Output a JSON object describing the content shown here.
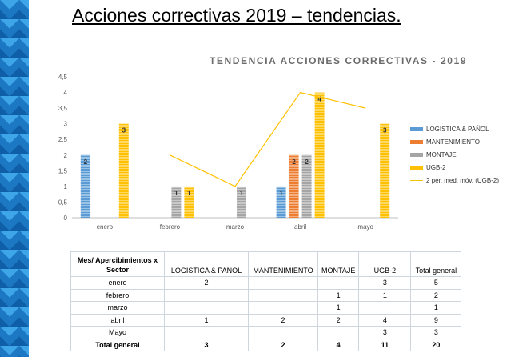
{
  "slide": {
    "title": "Acciones correctivas 2019 – tendencias."
  },
  "chart_data": {
    "type": "bar",
    "title": "TENDENCIA ACCIONES CORRECTIVAS - 2019",
    "categories": [
      "enero",
      "febrero",
      "marzo",
      "abril",
      "mayo"
    ],
    "ylim": [
      0,
      4.5
    ],
    "yticks": [
      "0",
      "0,5",
      "1",
      "1,5",
      "2",
      "2,5",
      "3",
      "3,5",
      "4",
      "4,5"
    ],
    "series": [
      {
        "name": "LOGISTICA & PAÑOL",
        "values": [
          2,
          null,
          null,
          1,
          null
        ],
        "color": "#5b9bd5"
      },
      {
        "name": "MANTENIMIENTO",
        "values": [
          null,
          null,
          null,
          2,
          null
        ],
        "color": "#ed7d31"
      },
      {
        "name": "MONTAJE",
        "values": [
          null,
          1,
          1,
          2,
          null
        ],
        "color": "#a5a5a5"
      },
      {
        "name": "UGB-2",
        "values": [
          3,
          1,
          null,
          4,
          3
        ],
        "color": "#ffc000"
      }
    ],
    "trendline": {
      "name": "2 per. med. móv. (UGB-2)",
      "values": [
        null,
        2,
        1,
        4,
        3.5
      ],
      "color": "#ffc000"
    },
    "legend_position": "right"
  },
  "table": {
    "header_row_label": "Mes/ Apercibimientos x Sector",
    "columns": [
      "LOGISTICA & PAÑOL",
      "MANTENIMIENTO",
      "MONTAJE",
      "UGB-2",
      "Total general"
    ],
    "rows": [
      {
        "label": "enero",
        "cells": [
          "2",
          "",
          "",
          "3",
          "5"
        ]
      },
      {
        "label": "febrero",
        "cells": [
          "",
          "",
          "1",
          "1",
          "2"
        ]
      },
      {
        "label": "marzo",
        "cells": [
          "",
          "",
          "1",
          "",
          "1"
        ]
      },
      {
        "label": "abril",
        "cells": [
          "1",
          "2",
          "2",
          "4",
          "9"
        ]
      },
      {
        "label": "Mayo",
        "cells": [
          "",
          "",
          "",
          "3",
          "3"
        ]
      }
    ],
    "total": {
      "label": "Total general",
      "cells": [
        "3",
        "2",
        "4",
        "11",
        "20"
      ]
    }
  }
}
